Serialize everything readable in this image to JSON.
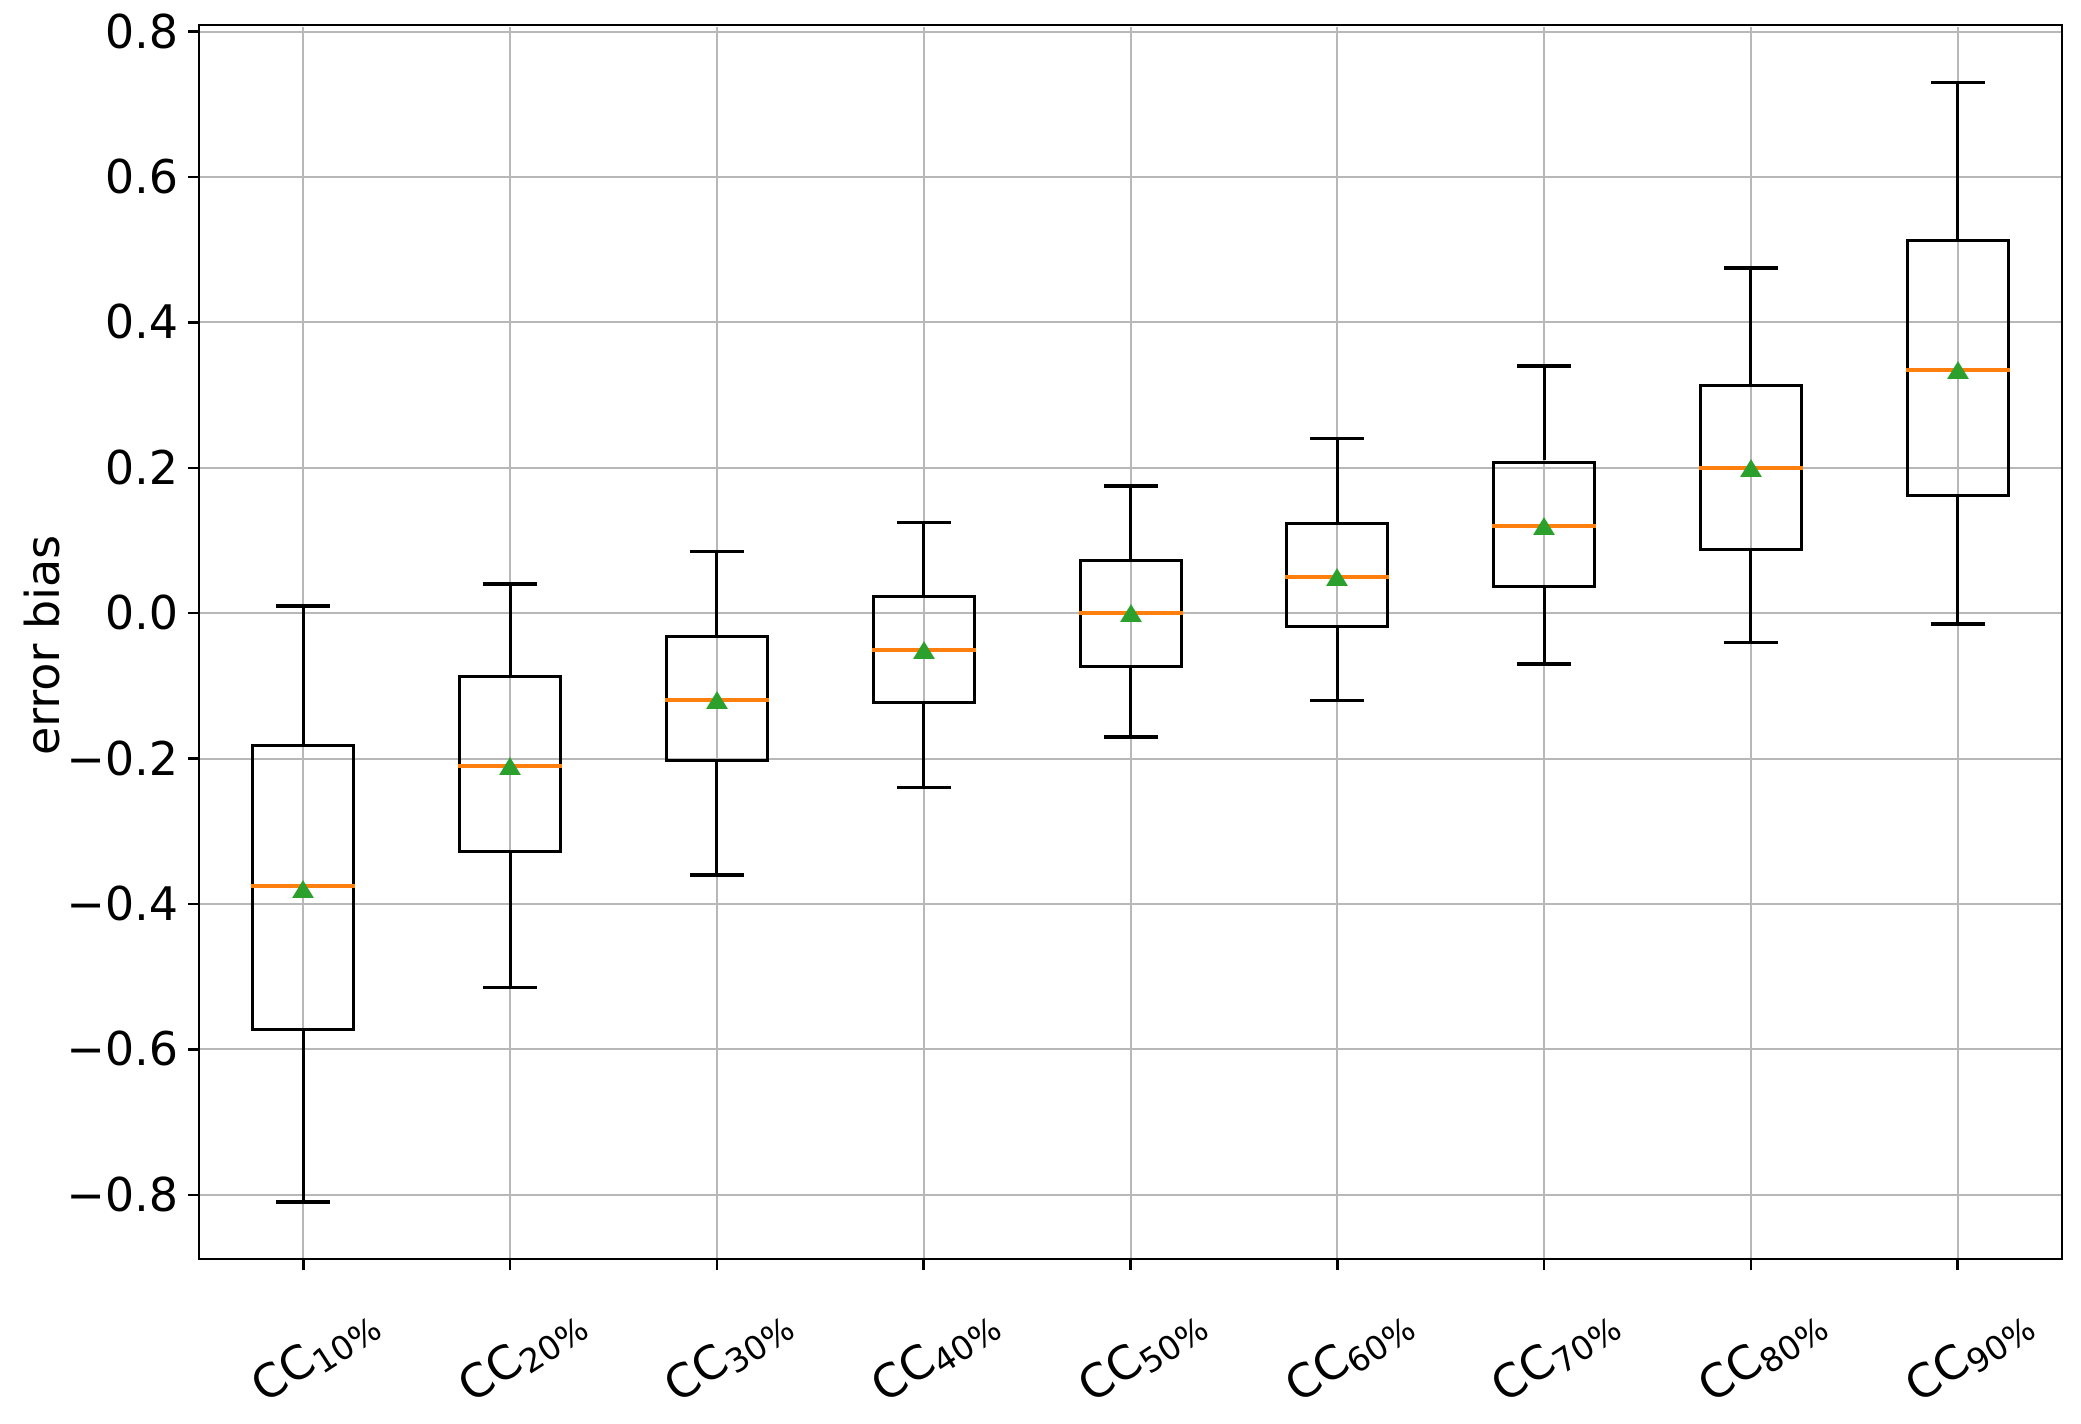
{
  "chart_data": {
    "type": "boxplot",
    "title": "",
    "xlabel": "",
    "ylabel": "error bias",
    "ylim": [
      -0.887,
      0.807
    ],
    "yticks": [
      0.8,
      0.6,
      0.4,
      0.2,
      0.0,
      -0.2,
      -0.4,
      -0.6,
      -0.8
    ],
    "ytick_labels": [
      "0.8",
      "0.6",
      "0.4",
      "0.2",
      "0.0",
      "−0.2",
      "−0.4",
      "−0.6",
      "−0.8"
    ],
    "grid": true,
    "legend": "none",
    "categories": [
      "CC10%",
      "CC20%",
      "CC30%",
      "CC40%",
      "CC50%",
      "CC60%",
      "CC70%",
      "CC80%",
      "CC90%"
    ],
    "category_label_parts": [
      {
        "prefix": "CC",
        "sub": "10%"
      },
      {
        "prefix": "CC",
        "sub": "20%"
      },
      {
        "prefix": "CC",
        "sub": "30%"
      },
      {
        "prefix": "CC",
        "sub": "40%"
      },
      {
        "prefix": "CC",
        "sub": "50%"
      },
      {
        "prefix": "CC",
        "sub": "60%"
      },
      {
        "prefix": "CC",
        "sub": "70%"
      },
      {
        "prefix": "CC",
        "sub": "80%"
      },
      {
        "prefix": "CC",
        "sub": "90%"
      }
    ],
    "series": [
      {
        "name": "CC10%",
        "whislo": -0.81,
        "q1": -0.575,
        "med": -0.375,
        "mean": -0.38,
        "q3": -0.18,
        "whishi": 0.01
      },
      {
        "name": "CC20%",
        "whislo": -0.515,
        "q1": -0.33,
        "med": -0.21,
        "mean": -0.21,
        "q3": -0.085,
        "whishi": 0.04
      },
      {
        "name": "CC30%",
        "whislo": -0.36,
        "q1": -0.205,
        "med": -0.12,
        "mean": -0.12,
        "q3": -0.03,
        "whishi": 0.085
      },
      {
        "name": "CC40%",
        "whislo": -0.24,
        "q1": -0.125,
        "med": -0.05,
        "mean": -0.05,
        "q3": 0.025,
        "whishi": 0.125
      },
      {
        "name": "CC50%",
        "whislo": -0.17,
        "q1": -0.075,
        "med": 0.0,
        "mean": 0.0,
        "q3": 0.075,
        "whishi": 0.175
      },
      {
        "name": "CC60%",
        "whislo": -0.12,
        "q1": -0.02,
        "med": 0.05,
        "mean": 0.05,
        "q3": 0.125,
        "whishi": 0.24
      },
      {
        "name": "CC70%",
        "whislo": -0.07,
        "q1": 0.035,
        "med": 0.12,
        "mean": 0.12,
        "q3": 0.21,
        "whishi": 0.34
      },
      {
        "name": "CC80%",
        "whislo": -0.04,
        "q1": 0.085,
        "med": 0.2,
        "mean": 0.2,
        "q3": 0.315,
        "whishi": 0.475
      },
      {
        "name": "CC90%",
        "whislo": -0.015,
        "q1": 0.16,
        "med": 0.335,
        "mean": 0.335,
        "q3": 0.515,
        "whishi": 0.73
      }
    ],
    "colors": {
      "box_line": "#000000",
      "whisker": "#000000",
      "median": "#ff7f0e",
      "mean_marker": "#2ca02c",
      "grid": "#b8b8b8",
      "text": "#000000",
      "background": "#ffffff"
    }
  }
}
